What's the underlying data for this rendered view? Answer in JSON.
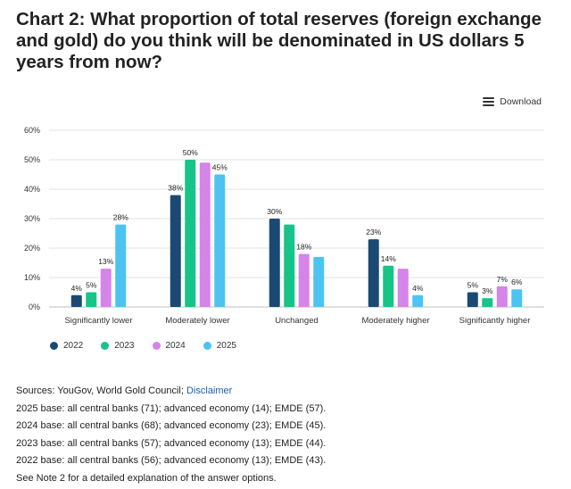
{
  "title": "Chart 2: What proportion of total reserves (foreign exchange and gold) do you think will be denominated in US dollars 5 years from now?",
  "download_label": "Download",
  "colors": {
    "2022": "#1a4a73",
    "2023": "#17c488",
    "2024": "#d584e8",
    "2025": "#4cc3f1"
  },
  "chart_data": {
    "type": "bar",
    "title": "Chart 2: What proportion of total reserves (foreign exchange and gold) do you think will be denominated in US dollars 5 years from now?",
    "xlabel": "",
    "ylabel": "",
    "ylim": [
      0,
      60
    ],
    "yticks": [
      "0%",
      "10%",
      "20%",
      "30%",
      "40%",
      "50%",
      "60%"
    ],
    "categories": [
      "Significantly lower",
      "Moderately lower",
      "Unchanged",
      "Moderately higher",
      "Significantly higher"
    ],
    "series": [
      {
        "name": "2022",
        "values": [
          4,
          38,
          30,
          23,
          5
        ],
        "labels": [
          "4%",
          "38%",
          "30%",
          "23%",
          "5%"
        ]
      },
      {
        "name": "2023",
        "values": [
          5,
          50,
          28,
          14,
          3
        ],
        "labels": [
          "5%",
          "50%",
          "",
          "14%",
          "3%"
        ]
      },
      {
        "name": "2024",
        "values": [
          13,
          49,
          18,
          13,
          7
        ],
        "labels": [
          "13%",
          "",
          "18%",
          "",
          "7%"
        ]
      },
      {
        "name": "2025",
        "values": [
          28,
          45,
          17,
          4,
          6
        ],
        "labels": [
          "28%",
          "45%",
          "",
          "4%",
          "6%"
        ]
      }
    ],
    "legend": "bottom-left",
    "grid": true
  },
  "notes": {
    "sources_prefix": "Sources: YouGov, World Gold Council; ",
    "disclaimer": "Disclaimer",
    "lines": [
      "2025 base: all central banks (71); advanced economy (14); EMDE (57).",
      "2024 base: all central banks (68); advanced economy (23); EMDE (45).",
      "2023 base: all central banks (57); advanced economy (13); EMDE (44).",
      "2022 base: all central banks (56); advanced economy (13); EMDE (43).",
      "See Note 2 for a detailed explanation of the answer options."
    ]
  }
}
